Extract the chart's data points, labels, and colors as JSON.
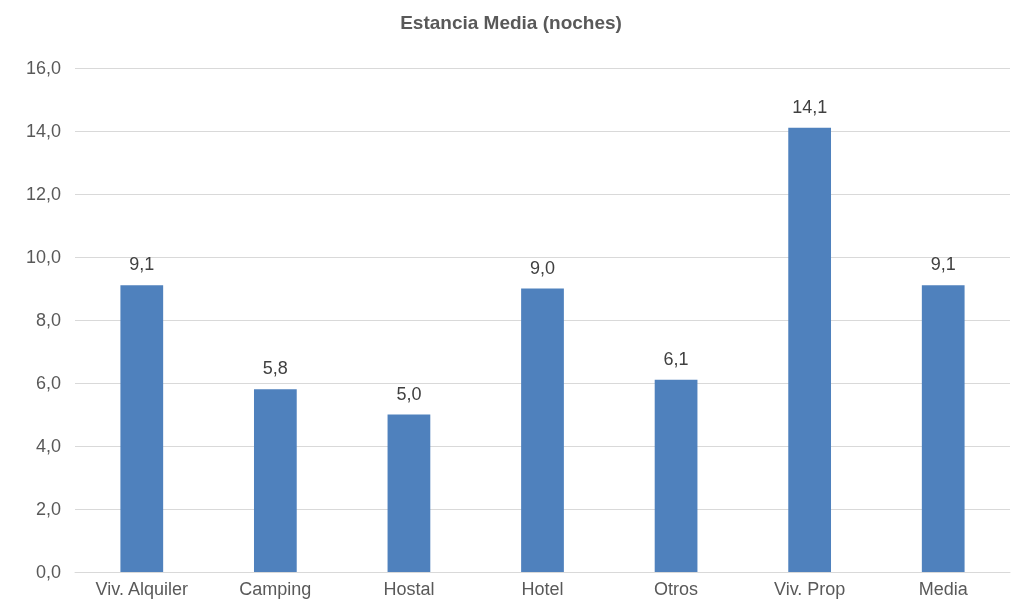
{
  "chart_data": {
    "type": "bar",
    "title": "Estancia Media (noches)",
    "categories": [
      "Viv. Alquiler",
      "Camping",
      "Hostal",
      "Hotel",
      "Otros",
      "Viv. Prop",
      "Media"
    ],
    "values": [
      9.1,
      5.8,
      5.0,
      9.0,
      6.1,
      14.1,
      9.1
    ],
    "value_labels": [
      "9,1",
      "5,8",
      "5,0",
      "9,0",
      "6,1",
      "14,1",
      "9,1"
    ],
    "color": "#4f81bd",
    "ylim": [
      0,
      16
    ],
    "yticks": [
      {
        "value": 0,
        "label": "0,0"
      },
      {
        "value": 2,
        "label": "2,0"
      },
      {
        "value": 4,
        "label": "4,0"
      },
      {
        "value": 6,
        "label": "6,0"
      },
      {
        "value": 8,
        "label": "8,0"
      },
      {
        "value": 10,
        "label": "10,0"
      },
      {
        "value": 12,
        "label": "12,0"
      },
      {
        "value": 14,
        "label": "14,0"
      },
      {
        "value": 16,
        "label": "16,0"
      }
    ],
    "grid": "y"
  }
}
